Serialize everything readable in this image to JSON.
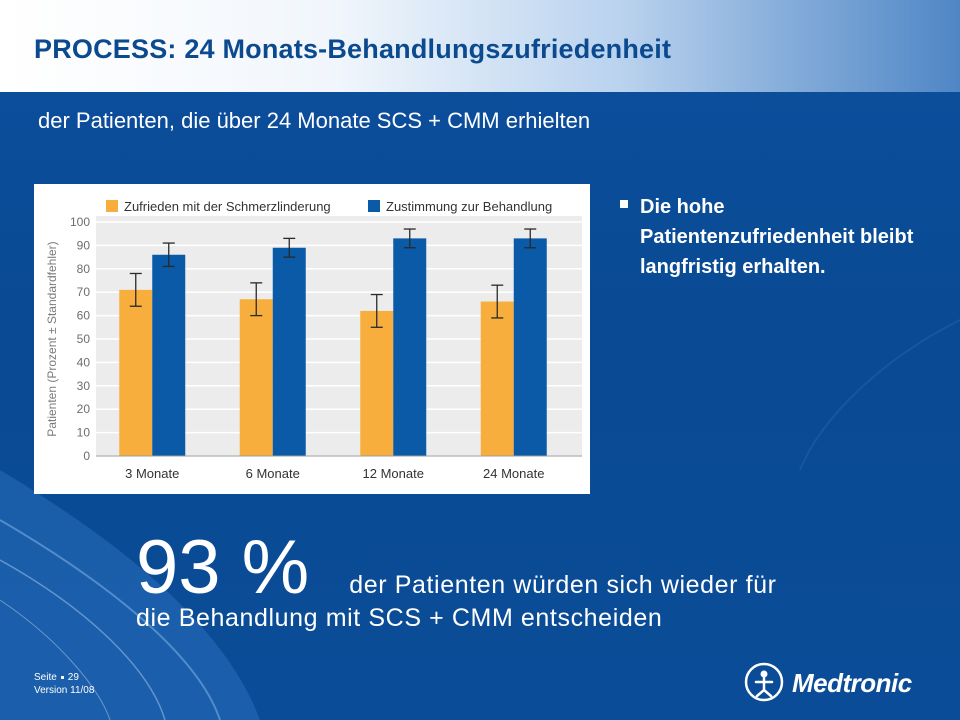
{
  "slide": {
    "title": "PROCESS:  24 Monats-Behandlungszufriedenheit",
    "subtitle": "der Patienten, die über 24 Monate SCS + CMM erhielten",
    "bullets": [
      {
        "text": "Die hohe Patientenzufriedenheit bleibt langfristig erhalten."
      }
    ],
    "stat": {
      "value": "93 %",
      "text_line1": "der Patienten würden sich wieder für",
      "text_line2": "die Behandlung mit SCS + CMM entscheiden"
    },
    "footer": {
      "page": "Seite",
      "page_number": "29",
      "version": "Version 11/08"
    },
    "logo": {
      "brand": "Medtronic",
      "icon": "medtronic-logo-icon"
    }
  },
  "colors": {
    "background": "#0b4f9c",
    "title": "#0b4a8f",
    "series_satisfied": "#f8ae3c",
    "series_agreement": "#0a5aa8"
  },
  "chart_data": {
    "type": "bar",
    "title": "",
    "xlabel": "",
    "ylabel": "Patienten (Prozent ± Standardfehler)",
    "ylim": [
      0,
      100
    ],
    "yticks": [
      "0",
      "10",
      "20",
      "30",
      "40",
      "50",
      "60",
      "70",
      "80",
      "90",
      "100"
    ],
    "grid": true,
    "legend_position": "top",
    "categories": [
      "3 Monate",
      "6 Monate",
      "12 Monate",
      "24 Monate"
    ],
    "series": [
      {
        "name": "Zufrieden mit der Schmerzlinderung",
        "color": "#f8ae3c",
        "values": [
          71,
          67,
          62,
          66
        ],
        "error": [
          7,
          7,
          7,
          7
        ]
      },
      {
        "name": "Zustimmung zur Behandlung",
        "color": "#0a5aa8",
        "values": [
          86,
          89,
          93,
          93
        ],
        "error": [
          5,
          4,
          4,
          4
        ]
      }
    ]
  }
}
